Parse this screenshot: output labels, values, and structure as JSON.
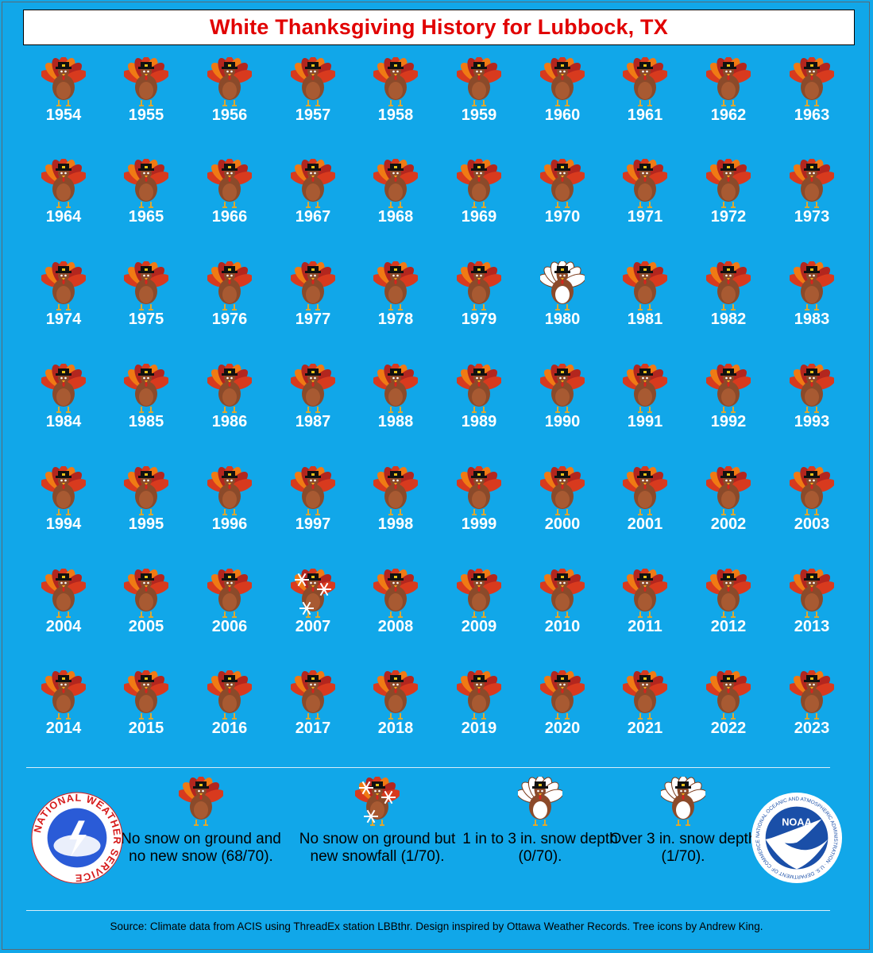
{
  "title": "White Thanksgiving History for Lubbock, TX",
  "colors": {
    "background": "#11a7e9",
    "title_text": "#e10000",
    "turkey_body": "#8b4a2a",
    "turkey_feathers": [
      "#d83a1e",
      "#f07a14",
      "#b3261e"
    ],
    "white_turkey": "#ffffff"
  },
  "years": [
    {
      "year": "1954",
      "status": "none"
    },
    {
      "year": "1955",
      "status": "none"
    },
    {
      "year": "1956",
      "status": "none"
    },
    {
      "year": "1957",
      "status": "none"
    },
    {
      "year": "1958",
      "status": "none"
    },
    {
      "year": "1959",
      "status": "none"
    },
    {
      "year": "1960",
      "status": "none"
    },
    {
      "year": "1961",
      "status": "none"
    },
    {
      "year": "1962",
      "status": "none"
    },
    {
      "year": "1963",
      "status": "none"
    },
    {
      "year": "1964",
      "status": "none"
    },
    {
      "year": "1965",
      "status": "none"
    },
    {
      "year": "1966",
      "status": "none"
    },
    {
      "year": "1967",
      "status": "none"
    },
    {
      "year": "1968",
      "status": "none"
    },
    {
      "year": "1969",
      "status": "none"
    },
    {
      "year": "1970",
      "status": "none"
    },
    {
      "year": "1971",
      "status": "none"
    },
    {
      "year": "1972",
      "status": "none"
    },
    {
      "year": "1973",
      "status": "none"
    },
    {
      "year": "1974",
      "status": "none"
    },
    {
      "year": "1975",
      "status": "none"
    },
    {
      "year": "1976",
      "status": "none"
    },
    {
      "year": "1977",
      "status": "none"
    },
    {
      "year": "1978",
      "status": "none"
    },
    {
      "year": "1979",
      "status": "none"
    },
    {
      "year": "1980",
      "status": "over3"
    },
    {
      "year": "1981",
      "status": "none"
    },
    {
      "year": "1982",
      "status": "none"
    },
    {
      "year": "1983",
      "status": "none"
    },
    {
      "year": "1984",
      "status": "none"
    },
    {
      "year": "1985",
      "status": "none"
    },
    {
      "year": "1986",
      "status": "none"
    },
    {
      "year": "1987",
      "status": "none"
    },
    {
      "year": "1988",
      "status": "none"
    },
    {
      "year": "1989",
      "status": "none"
    },
    {
      "year": "1990",
      "status": "none"
    },
    {
      "year": "1991",
      "status": "none"
    },
    {
      "year": "1992",
      "status": "none"
    },
    {
      "year": "1993",
      "status": "none"
    },
    {
      "year": "1994",
      "status": "none"
    },
    {
      "year": "1995",
      "status": "none"
    },
    {
      "year": "1996",
      "status": "none"
    },
    {
      "year": "1997",
      "status": "none"
    },
    {
      "year": "1998",
      "status": "none"
    },
    {
      "year": "1999",
      "status": "none"
    },
    {
      "year": "2000",
      "status": "none"
    },
    {
      "year": "2001",
      "status": "none"
    },
    {
      "year": "2002",
      "status": "none"
    },
    {
      "year": "2003",
      "status": "none"
    },
    {
      "year": "2004",
      "status": "none"
    },
    {
      "year": "2005",
      "status": "none"
    },
    {
      "year": "2006",
      "status": "none"
    },
    {
      "year": "2007",
      "status": "snowfall"
    },
    {
      "year": "2008",
      "status": "none"
    },
    {
      "year": "2009",
      "status": "none"
    },
    {
      "year": "2010",
      "status": "none"
    },
    {
      "year": "2011",
      "status": "none"
    },
    {
      "year": "2012",
      "status": "none"
    },
    {
      "year": "2013",
      "status": "none"
    },
    {
      "year": "2014",
      "status": "none"
    },
    {
      "year": "2015",
      "status": "none"
    },
    {
      "year": "2016",
      "status": "none"
    },
    {
      "year": "2017",
      "status": "none"
    },
    {
      "year": "2018",
      "status": "none"
    },
    {
      "year": "2019",
      "status": "none"
    },
    {
      "year": "2020",
      "status": "none"
    },
    {
      "year": "2021",
      "status": "none"
    },
    {
      "year": "2022",
      "status": "none"
    },
    {
      "year": "2023",
      "status": "none"
    }
  ],
  "legend": [
    {
      "status": "none",
      "text": "No snow on ground and no new snow (68/70)."
    },
    {
      "status": "snowfall",
      "text": "No snow on ground but new snowfall (1/70)."
    },
    {
      "status": "1to3",
      "text": "1 in to 3 in. snow depth (0/70)."
    },
    {
      "status": "over3",
      "text": "Over 3 in. snow depth (1/70)."
    }
  ],
  "logos": {
    "nws_text": "NATIONAL WEATHER SERVICE",
    "noaa_text": "NOAA",
    "noaa_ring_text": "NATIONAL OCEANIC AND ATMOSPHERIC ADMINISTRATION · U.S. DEPARTMENT OF COMMERCE"
  },
  "source": "Source: Climate data from ACIS using ThreadEx station LBBthr. Design inspired by Ottawa Weather Records. Tree icons by Andrew King."
}
